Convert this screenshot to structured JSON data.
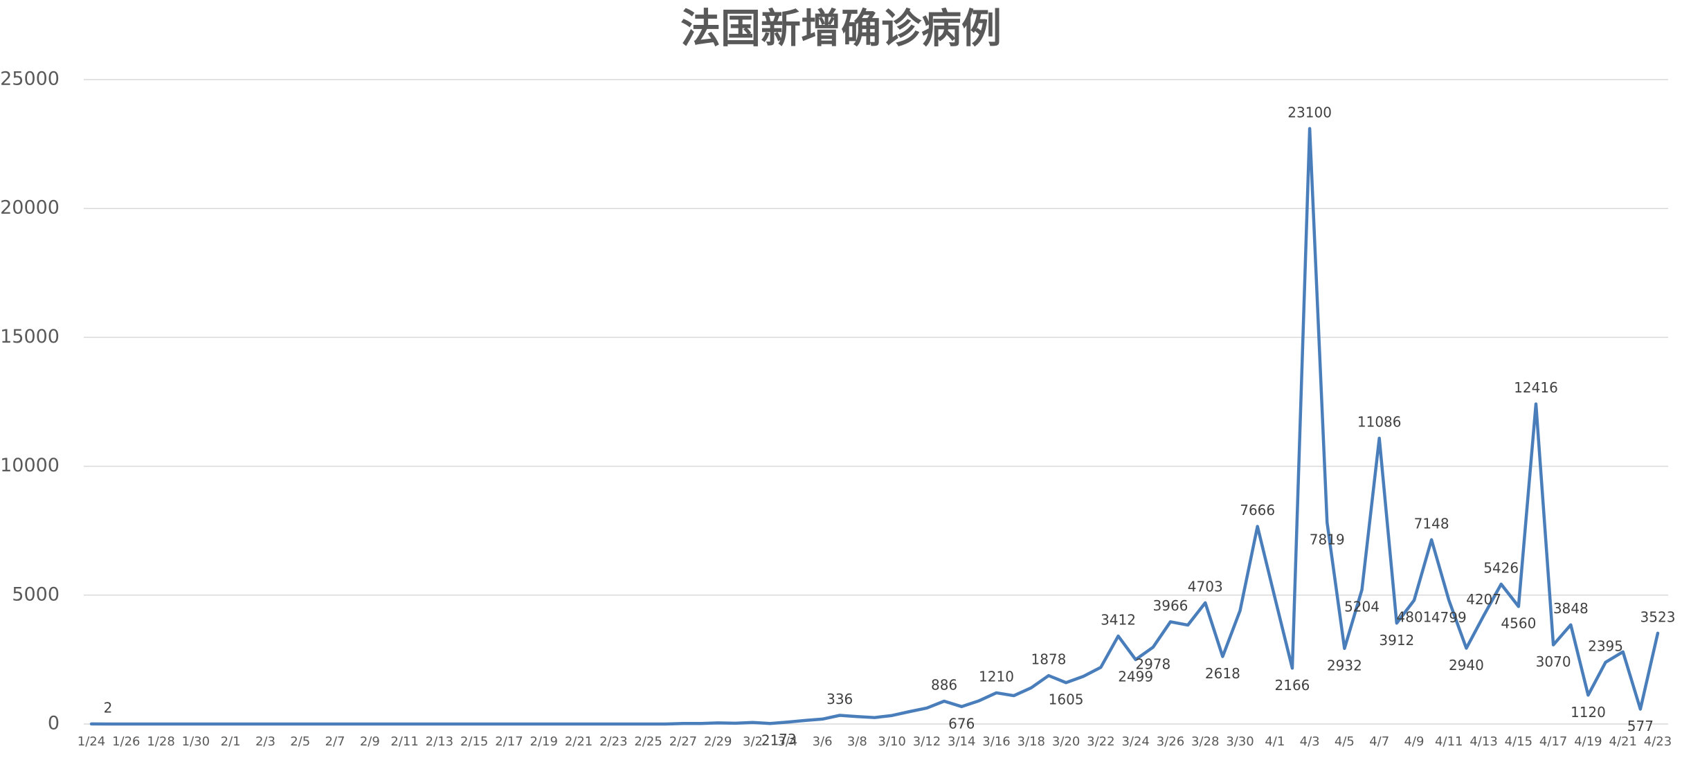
{
  "chart_data": {
    "type": "line",
    "title": "法国新增确诊病例",
    "categories": [
      "1/24",
      null,
      "1/26",
      null,
      "1/28",
      null,
      "1/30",
      null,
      "2/1",
      null,
      "2/3",
      null,
      "2/5",
      null,
      "2/7",
      null,
      "2/9",
      null,
      "2/11",
      null,
      "2/13",
      null,
      "2/15",
      null,
      "2/17",
      null,
      "2/19",
      null,
      "2/21",
      null,
      "2/23",
      null,
      "2/25",
      null,
      "2/27",
      null,
      "2/29",
      null,
      "3/2",
      null,
      "3/4",
      null,
      "3/6",
      null,
      "3/8",
      null,
      "3/10",
      null,
      "3/12",
      null,
      "3/14",
      null,
      "3/16",
      null,
      "3/18",
      null,
      "3/20",
      null,
      "3/22",
      null,
      "3/24",
      null,
      "3/26",
      null,
      "3/28",
      null,
      "3/30",
      null,
      "4/1",
      null,
      "4/3",
      null,
      "4/5",
      null,
      "4/7",
      null,
      "4/9",
      null,
      "4/11",
      null,
      "4/13",
      null,
      "4/15",
      null,
      "4/17",
      null,
      "4/19",
      null,
      "4/21",
      null,
      "4/23"
    ],
    "values": [
      2,
      0,
      0,
      0,
      0,
      0,
      0,
      1,
      0,
      0,
      0,
      0,
      0,
      0,
      0,
      0,
      0,
      0,
      0,
      0,
      0,
      0,
      0,
      0,
      0,
      0,
      0,
      0,
      0,
      0,
      0,
      0,
      0,
      0,
      20,
      19,
      43,
      30,
      61,
      21,
      73,
      138,
      190,
      336,
      290,
      250,
      330,
      480,
      620,
      886,
      676,
      900,
      1210,
      1100,
      1404,
      1878,
      1605,
      1850,
      2200,
      3412,
      2499,
      2978,
      3966,
      3838,
      4703,
      2618,
      4400,
      7666,
      4900,
      2166,
      23100,
      7819,
      2932,
      5204,
      11086,
      3912,
      4801,
      7148,
      4799,
      2940,
      4207,
      5426,
      4560,
      12416,
      3070,
      3848,
      1120,
      2395,
      2800,
      577,
      3523
    ],
    "value_labels": [
      "2",
      null,
      null,
      null,
      null,
      null,
      null,
      null,
      null,
      null,
      null,
      null,
      null,
      null,
      null,
      null,
      null,
      null,
      null,
      null,
      null,
      null,
      null,
      null,
      null,
      null,
      null,
      null,
      null,
      null,
      null,
      null,
      null,
      null,
      null,
      null,
      null,
      null,
      null,
      "21",
      "73",
      null,
      null,
      "336",
      null,
      null,
      null,
      null,
      null,
      "886",
      "676",
      null,
      "1210",
      null,
      null,
      "1878",
      "1605",
      null,
      null,
      "3412",
      "2499",
      "2978",
      "3966",
      null,
      "4703",
      "2618",
      null,
      "7666",
      null,
      "2166",
      "23100",
      "7819",
      "2932",
      "5204",
      "11086",
      "3912",
      "4801",
      "7148",
      "4799",
      "2940",
      "4207",
      "5426",
      "4560",
      "12416",
      "3070",
      "3848",
      "1120",
      "2395",
      null,
      "577",
      "3523"
    ],
    "color": "#4a7ebb",
    "ylim": [
      0,
      25000
    ],
    "yticks": [
      0,
      5000,
      10000,
      15000,
      20000,
      25000
    ],
    "grid": true
  }
}
